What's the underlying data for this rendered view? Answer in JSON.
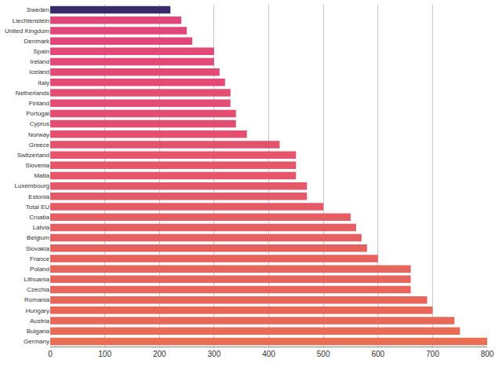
{
  "chart_data": {
    "type": "bar",
    "orientation": "horizontal",
    "categories": [
      "Sweden",
      "Liechtenstein",
      "United Kingdom",
      "Denmark",
      "Spain",
      "Ireland",
      "Iceland",
      "Italy",
      "Netherlands",
      "Finland",
      "Portugal",
      "Cyprus",
      "Norway",
      "Greece",
      "Switzerland",
      "Slovenia",
      "Malta",
      "Luxembourg",
      "Estonia",
      "Total EU",
      "Croatia",
      "Latvia",
      "Belgium",
      "Slovakia",
      "France",
      "Poland",
      "Lithuania",
      "Czechia",
      "Romania",
      "Hungary",
      "Austria",
      "Bulgaria",
      "Germany"
    ],
    "values": [
      220,
      240,
      250,
      260,
      300,
      300,
      310,
      320,
      330,
      330,
      340,
      340,
      360,
      420,
      450,
      450,
      450,
      470,
      470,
      500,
      550,
      560,
      570,
      580,
      600,
      660,
      660,
      660,
      690,
      700,
      740,
      750,
      800
    ],
    "colors": [
      "#3a2a6c",
      "#e2457a",
      "#e2467a",
      "#e24778",
      "#e24976",
      "#e24976",
      "#e34a75",
      "#e34b74",
      "#e34c73",
      "#e34c73",
      "#e34d72",
      "#e34d72",
      "#e44f70",
      "#e4536d",
      "#e5566a",
      "#e5566a",
      "#e5566a",
      "#e55868",
      "#e55868",
      "#e65a66",
      "#e65d63",
      "#e65e62",
      "#e65f61",
      "#e76060",
      "#e7615e",
      "#e7655b",
      "#e7655b",
      "#e7655b",
      "#e86759",
      "#e86858",
      "#e86a56",
      "#e86b55",
      "#e96e52"
    ],
    "xlim": [
      0,
      800
    ],
    "xticks": [
      0,
      100,
      200,
      300,
      400,
      500,
      600,
      700,
      800
    ],
    "grid": true
  }
}
